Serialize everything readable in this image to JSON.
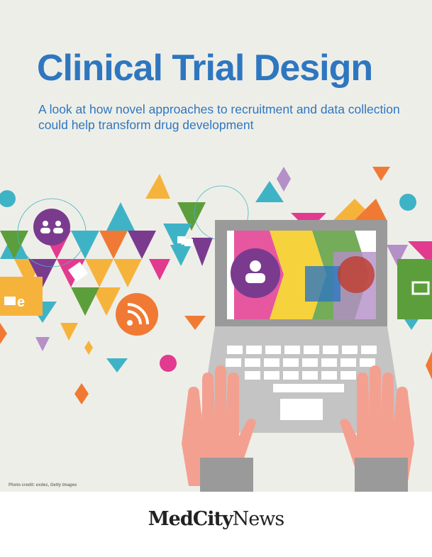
{
  "header": {
    "title": "Clinical Trial Design",
    "subtitle": "A look at how novel approaches to recruitment and data collection could help transform drug development"
  },
  "image": {
    "credit_prefix": "Photo credit: exdez, ",
    "credit_source": "Getty Images",
    "icons": [
      "people-icon",
      "phone-icon",
      "email-icon",
      "rss-icon",
      "chat-icon",
      "user-icon",
      "monitor-icon",
      "laptop-icon",
      "hands-icon"
    ]
  },
  "footer": {
    "logo_bold": "MedCity",
    "logo_regular": "News"
  },
  "colors": {
    "title": "#2e77c0",
    "background": "#eeeee8"
  }
}
